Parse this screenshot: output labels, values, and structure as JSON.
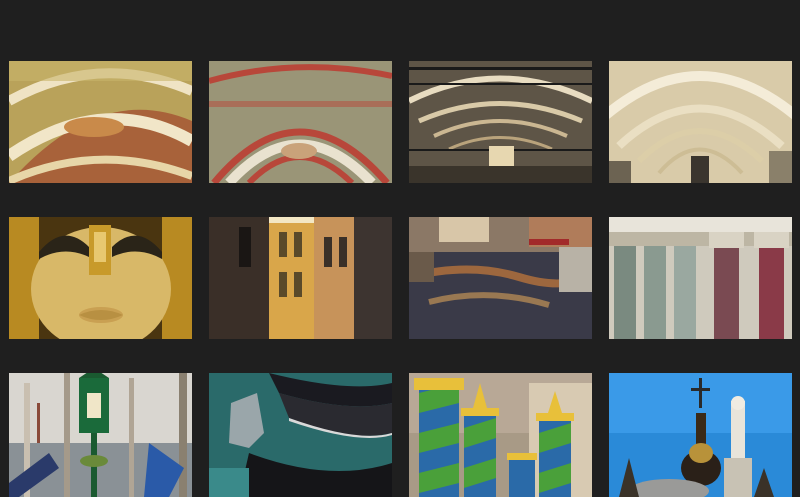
{
  "gallery": {
    "items": [
      {
        "subject": "painted-vault-ceiling-icon"
      },
      {
        "subject": "frescoed-arches-icon"
      },
      {
        "subject": "arcade-corridor-icon"
      },
      {
        "subject": "white-arcade-vault-icon"
      },
      {
        "subject": "golden-carnival-mask-icon"
      },
      {
        "subject": "narrow-street-facades-icon"
      },
      {
        "subject": "canal-reflections-icon"
      },
      {
        "subject": "marble-columns-icon"
      },
      {
        "subject": "gondolas-lagoon-icon"
      },
      {
        "subject": "gondola-bows-icon"
      },
      {
        "subject": "striped-mooring-poles-icon"
      },
      {
        "subject": "basilica-domes-statue-icon"
      }
    ]
  }
}
